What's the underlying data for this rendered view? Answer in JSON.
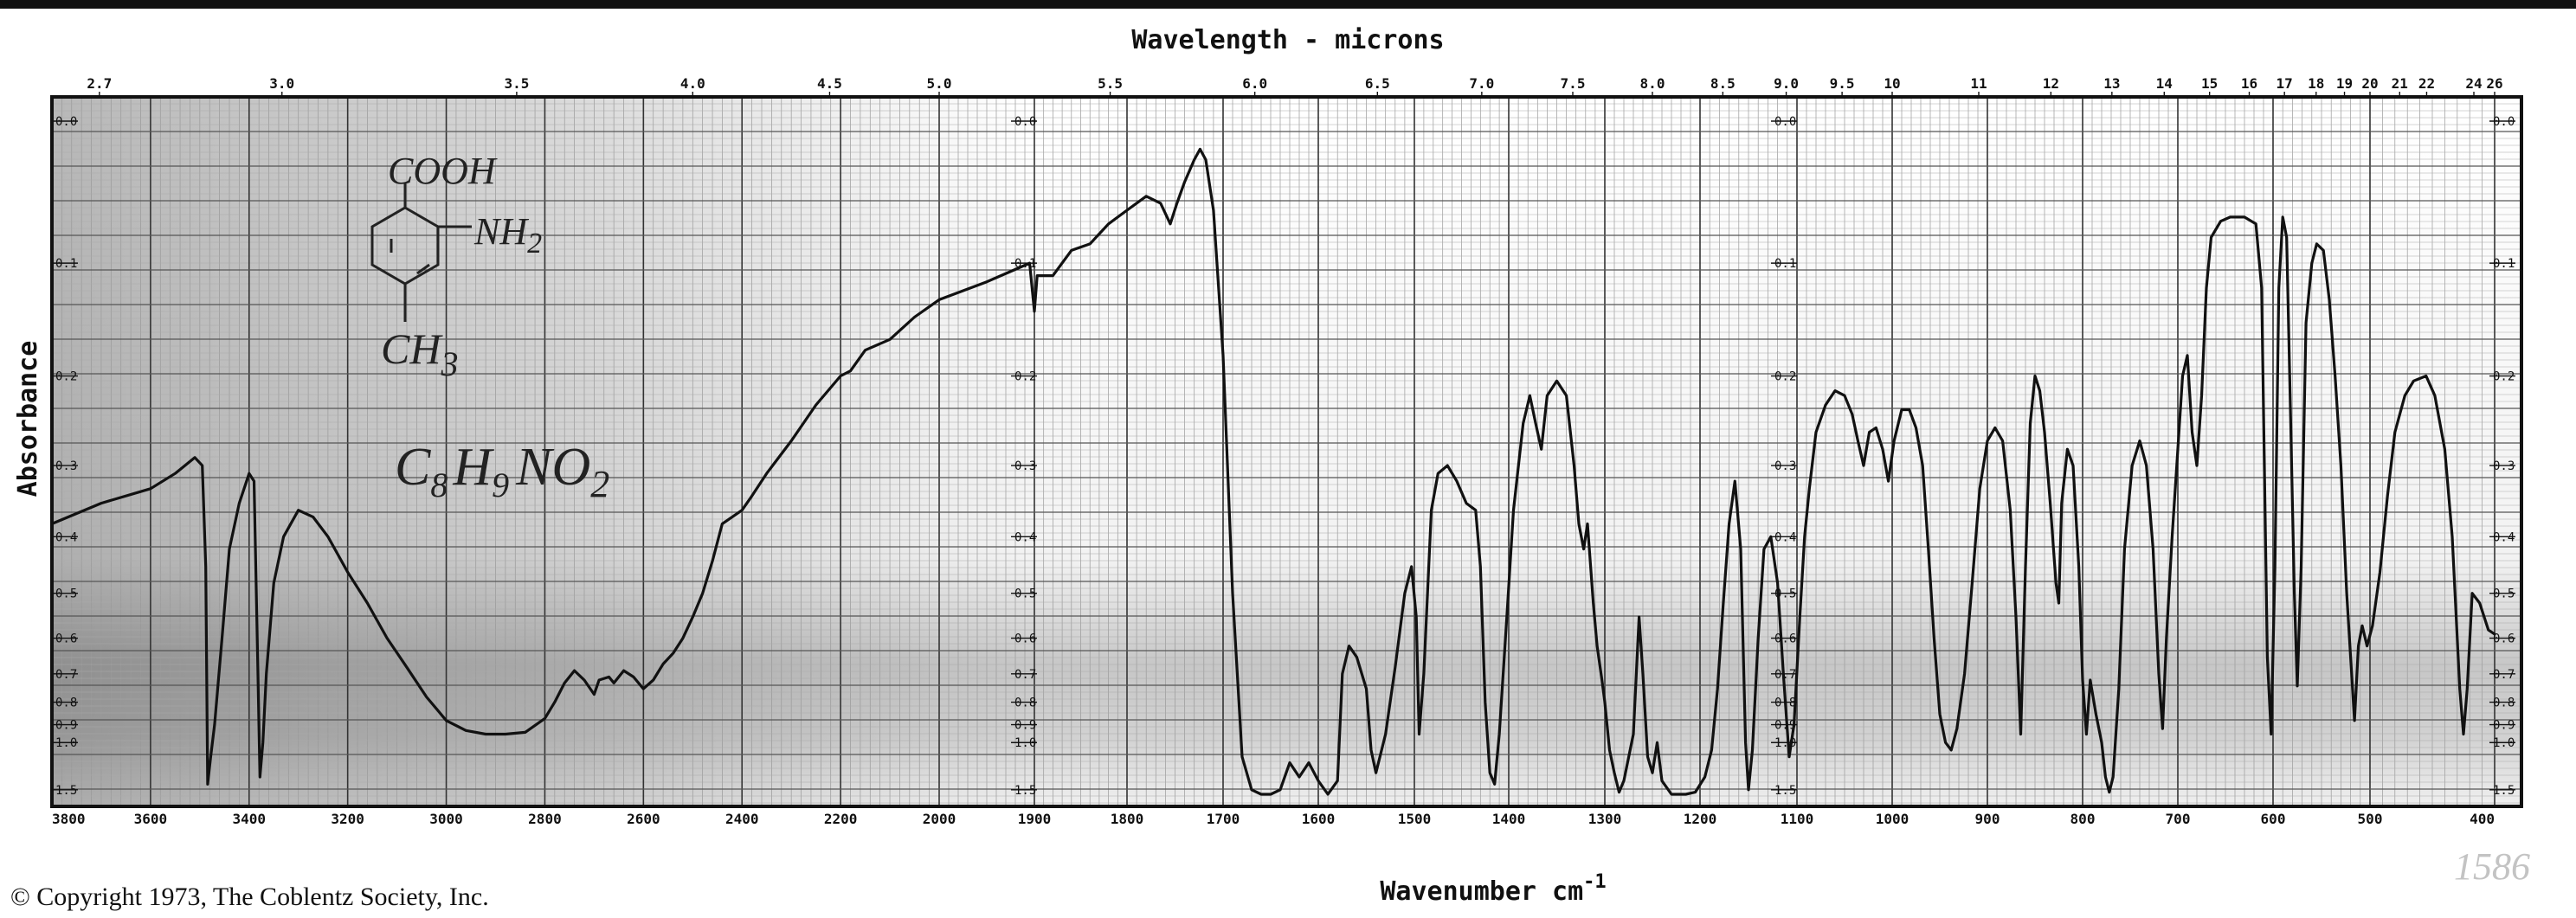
{
  "chart_data": {
    "type": "line",
    "title": "",
    "top_axis": {
      "label": "Wavelength - microns",
      "ticks": [
        "2.7",
        "3.0",
        "3.5",
        "4.0",
        "4.5",
        "5.0",
        "5.5",
        "6.0",
        "6.5",
        "7.0",
        "7.5",
        "8.0",
        "8.5",
        "9.0",
        "9.5",
        "10",
        "11",
        "12",
        "13",
        "14",
        "15",
        "16",
        "17",
        "18",
        "19",
        "20",
        "21",
        "22",
        "24",
        "26"
      ]
    },
    "xlabel": "Wavenumber cm",
    "xlabel_superscript": "-1",
    "ylabel": "Absorbance",
    "x_ticks": [
      3800,
      3600,
      3400,
      3200,
      3000,
      2800,
      2600,
      2400,
      2200,
      2000,
      1900,
      1800,
      1700,
      1600,
      1500,
      1400,
      1300,
      1200,
      1100,
      1000,
      900,
      800,
      700,
      600,
      500,
      400
    ],
    "y_tick_labels": [
      "0.0",
      "0.1",
      "0.2",
      "0.3",
      "0.4",
      "0.5",
      "0.6",
      "0.7",
      "0.8",
      "0.9",
      "1.0",
      "1.5"
    ],
    "series": [
      {
        "color": "#111111",
        "points": [
          [
            3800,
            0.38
          ],
          [
            3700,
            0.35
          ],
          [
            3600,
            0.33
          ],
          [
            3550,
            0.31
          ],
          [
            3510,
            0.29
          ],
          [
            3495,
            0.3
          ],
          [
            3488,
            0.45
          ],
          [
            3484,
            1.4
          ],
          [
            3478,
            1.1
          ],
          [
            3470,
            0.9
          ],
          [
            3455,
            0.6
          ],
          [
            3440,
            0.42
          ],
          [
            3420,
            0.35
          ],
          [
            3400,
            0.31
          ],
          [
            3390,
            0.32
          ],
          [
            3382,
            0.7
          ],
          [
            3378,
            1.3
          ],
          [
            3372,
            1.0
          ],
          [
            3365,
            0.7
          ],
          [
            3350,
            0.48
          ],
          [
            3330,
            0.4
          ],
          [
            3300,
            0.36
          ],
          [
            3270,
            0.37
          ],
          [
            3240,
            0.4
          ],
          [
            3200,
            0.46
          ],
          [
            3160,
            0.52
          ],
          [
            3120,
            0.6
          ],
          [
            3080,
            0.68
          ],
          [
            3040,
            0.78
          ],
          [
            3000,
            0.88
          ],
          [
            2960,
            0.93
          ],
          [
            2920,
            0.95
          ],
          [
            2880,
            0.95
          ],
          [
            2840,
            0.94
          ],
          [
            2800,
            0.87
          ],
          [
            2780,
            0.8
          ],
          [
            2760,
            0.73
          ],
          [
            2740,
            0.69
          ],
          [
            2720,
            0.72
          ],
          [
            2700,
            0.77
          ],
          [
            2690,
            0.72
          ],
          [
            2670,
            0.71
          ],
          [
            2660,
            0.73
          ],
          [
            2640,
            0.69
          ],
          [
            2620,
            0.71
          ],
          [
            2600,
            0.75
          ],
          [
            2580,
            0.72
          ],
          [
            2560,
            0.67
          ],
          [
            2540,
            0.64
          ],
          [
            2520,
            0.6
          ],
          [
            2500,
            0.55
          ],
          [
            2480,
            0.5
          ],
          [
            2460,
            0.44
          ],
          [
            2440,
            0.38
          ],
          [
            2420,
            0.37
          ],
          [
            2400,
            0.36
          ],
          [
            2380,
            0.34
          ],
          [
            2350,
            0.31
          ],
          [
            2300,
            0.27
          ],
          [
            2250,
            0.23
          ],
          [
            2200,
            0.2
          ],
          [
            2180,
            0.195
          ],
          [
            2150,
            0.175
          ],
          [
            2100,
            0.165
          ],
          [
            2050,
            0.145
          ],
          [
            2000,
            0.13
          ],
          [
            1950,
            0.115
          ],
          [
            1920,
            0.105
          ],
          [
            1905,
            0.1
          ],
          [
            1900,
            0.14
          ],
          [
            1897,
            0.11
          ],
          [
            1880,
            0.11
          ],
          [
            1860,
            0.09
          ],
          [
            1840,
            0.085
          ],
          [
            1820,
            0.07
          ],
          [
            1800,
            0.06
          ],
          [
            1780,
            0.05
          ],
          [
            1765,
            0.055
          ],
          [
            1755,
            0.07
          ],
          [
            1748,
            0.055
          ],
          [
            1740,
            0.04
          ],
          [
            1730,
            0.025
          ],
          [
            1724,
            0.018
          ],
          [
            1718,
            0.025
          ],
          [
            1710,
            0.06
          ],
          [
            1700,
            0.18
          ],
          [
            1690,
            0.5
          ],
          [
            1680,
            1.1
          ],
          [
            1670,
            1.5
          ],
          [
            1660,
            1.6
          ],
          [
            1650,
            1.6
          ],
          [
            1640,
            1.5
          ],
          [
            1630,
            1.15
          ],
          [
            1620,
            1.3
          ],
          [
            1610,
            1.15
          ],
          [
            1600,
            1.35
          ],
          [
            1590,
            1.6
          ],
          [
            1580,
            1.35
          ],
          [
            1575,
            0.7
          ],
          [
            1568,
            0.62
          ],
          [
            1560,
            0.65
          ],
          [
            1550,
            0.75
          ],
          [
            1545,
            1.05
          ],
          [
            1540,
            1.25
          ],
          [
            1530,
            0.95
          ],
          [
            1520,
            0.68
          ],
          [
            1510,
            0.5
          ],
          [
            1503,
            0.45
          ],
          [
            1498,
            0.55
          ],
          [
            1495,
            0.95
          ],
          [
            1490,
            0.7
          ],
          [
            1482,
            0.36
          ],
          [
            1475,
            0.31
          ],
          [
            1465,
            0.3
          ],
          [
            1455,
            0.32
          ],
          [
            1445,
            0.35
          ],
          [
            1435,
            0.36
          ],
          [
            1430,
            0.45
          ],
          [
            1425,
            0.8
          ],
          [
            1420,
            1.25
          ],
          [
            1415,
            1.4
          ],
          [
            1410,
            0.95
          ],
          [
            1402,
            0.55
          ],
          [
            1395,
            0.36
          ],
          [
            1385,
            0.25
          ],
          [
            1378,
            0.22
          ],
          [
            1372,
            0.25
          ],
          [
            1366,
            0.28
          ],
          [
            1360,
            0.22
          ],
          [
            1350,
            0.205
          ],
          [
            1340,
            0.22
          ],
          [
            1332,
            0.3
          ],
          [
            1327,
            0.38
          ],
          [
            1322,
            0.42
          ],
          [
            1318,
            0.38
          ],
          [
            1312,
            0.52
          ],
          [
            1308,
            0.62
          ],
          [
            1303,
            0.72
          ],
          [
            1300,
            0.8
          ],
          [
            1295,
            1.05
          ],
          [
            1290,
            1.25
          ],
          [
            1285,
            1.55
          ],
          [
            1280,
            1.35
          ],
          [
            1270,
            0.95
          ],
          [
            1264,
            0.55
          ],
          [
            1260,
            0.7
          ],
          [
            1255,
            1.1
          ],
          [
            1250,
            1.25
          ],
          [
            1245,
            1.0
          ],
          [
            1240,
            1.35
          ],
          [
            1230,
            1.6
          ],
          [
            1215,
            1.6
          ],
          [
            1205,
            1.55
          ],
          [
            1195,
            1.3
          ],
          [
            1188,
            1.05
          ],
          [
            1182,
            0.75
          ],
          [
            1176,
            0.52
          ],
          [
            1170,
            0.38
          ],
          [
            1164,
            0.32
          ],
          [
            1158,
            0.42
          ],
          [
            1153,
            1.0
          ],
          [
            1150,
            1.5
          ],
          [
            1146,
            1.05
          ],
          [
            1140,
            0.6
          ],
          [
            1134,
            0.42
          ],
          [
            1127,
            0.4
          ],
          [
            1120,
            0.48
          ],
          [
            1114,
            0.7
          ],
          [
            1108,
            1.1
          ],
          [
            1103,
            0.9
          ],
          [
            1097,
            0.55
          ],
          [
            1092,
            0.4
          ],
          [
            1087,
            0.33
          ],
          [
            1080,
            0.26
          ],
          [
            1070,
            0.23
          ],
          [
            1060,
            0.215
          ],
          [
            1050,
            0.22
          ],
          [
            1042,
            0.24
          ],
          [
            1036,
            0.27
          ],
          [
            1030,
            0.3
          ],
          [
            1024,
            0.26
          ],
          [
            1017,
            0.255
          ],
          [
            1010,
            0.28
          ],
          [
            1004,
            0.32
          ],
          [
            998,
            0.27
          ],
          [
            990,
            0.235
          ],
          [
            982,
            0.235
          ],
          [
            975,
            0.255
          ],
          [
            968,
            0.3
          ],
          [
            962,
            0.42
          ],
          [
            956,
            0.6
          ],
          [
            950,
            0.85
          ],
          [
            944,
            1.0
          ],
          [
            938,
            1.05
          ],
          [
            932,
            0.92
          ],
          [
            924,
            0.7
          ],
          [
            916,
            0.48
          ],
          [
            908,
            0.33
          ],
          [
            900,
            0.27
          ],
          [
            892,
            0.255
          ],
          [
            884,
            0.27
          ],
          [
            876,
            0.36
          ],
          [
            870,
            0.55
          ],
          [
            865,
            0.95
          ],
          [
            860,
            0.45
          ],
          [
            855,
            0.25
          ],
          [
            850,
            0.2
          ],
          [
            845,
            0.215
          ],
          [
            840,
            0.26
          ],
          [
            834,
            0.35
          ],
          [
            828,
            0.48
          ],
          [
            825,
            0.52
          ],
          [
            822,
            0.35
          ],
          [
            816,
            0.28
          ],
          [
            810,
            0.3
          ],
          [
            804,
            0.45
          ],
          [
            800,
            0.72
          ],
          [
            796,
            0.95
          ],
          [
            792,
            0.72
          ],
          [
            786,
            0.85
          ],
          [
            780,
            1.0
          ],
          [
            776,
            1.3
          ],
          [
            772,
            1.55
          ],
          [
            768,
            1.3
          ],
          [
            762,
            0.75
          ],
          [
            756,
            0.42
          ],
          [
            748,
            0.3
          ],
          [
            740,
            0.27
          ],
          [
            733,
            0.3
          ],
          [
            726,
            0.42
          ],
          [
            720,
            0.7
          ],
          [
            716,
            0.92
          ],
          [
            712,
            0.6
          ],
          [
            706,
            0.4
          ],
          [
            700,
            0.28
          ],
          [
            695,
            0.2
          ],
          [
            690,
            0.18
          ],
          [
            685,
            0.26
          ],
          [
            680,
            0.3
          ],
          [
            675,
            0.22
          ],
          [
            670,
            0.12
          ],
          [
            665,
            0.08
          ],
          [
            655,
            0.068
          ],
          [
            645,
            0.065
          ],
          [
            630,
            0.065
          ],
          [
            618,
            0.07
          ],
          [
            612,
            0.12
          ],
          [
            606,
            0.65
          ],
          [
            602,
            0.95
          ],
          [
            598,
            0.45
          ],
          [
            594,
            0.12
          ],
          [
            590,
            0.065
          ],
          [
            586,
            0.08
          ],
          [
            582,
            0.24
          ],
          [
            578,
            0.5
          ],
          [
            575,
            0.74
          ],
          [
            571,
            0.45
          ],
          [
            566,
            0.15
          ],
          [
            560,
            0.1
          ],
          [
            555,
            0.085
          ],
          [
            548,
            0.09
          ],
          [
            542,
            0.13
          ],
          [
            536,
            0.2
          ],
          [
            530,
            0.3
          ],
          [
            524,
            0.5
          ],
          [
            520,
            0.65
          ],
          [
            516,
            0.88
          ],
          [
            512,
            0.62
          ],
          [
            508,
            0.57
          ],
          [
            503,
            0.62
          ],
          [
            498,
            0.57
          ],
          [
            492,
            0.46
          ],
          [
            486,
            0.34
          ],
          [
            480,
            0.26
          ],
          [
            472,
            0.22
          ],
          [
            465,
            0.205
          ],
          [
            455,
            0.2
          ],
          [
            448,
            0.22
          ],
          [
            440,
            0.28
          ],
          [
            434,
            0.4
          ],
          [
            428,
            0.75
          ],
          [
            425,
            0.95
          ],
          [
            422,
            0.75
          ],
          [
            418,
            0.5
          ],
          [
            412,
            0.52
          ],
          [
            405,
            0.58
          ],
          [
            400,
            0.59
          ]
        ]
      }
    ],
    "annotations": [
      "COOH",
      "NH",
      "2",
      "CH",
      "3",
      "C",
      "8",
      "H",
      "9",
      "NO",
      "2"
    ],
    "footer_left": "© Copyright 1973, The Coblentz Society, Inc.",
    "footer_right": "1586",
    "grid": true,
    "legend": "none"
  }
}
